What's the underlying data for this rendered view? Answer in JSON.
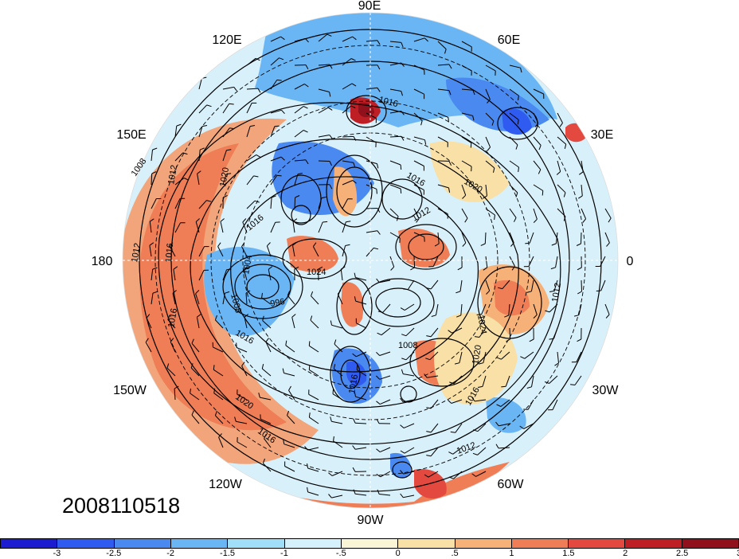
{
  "map": {
    "projection": "north-polar-stereographic",
    "timestamp": "2008110518",
    "lon_labels": {
      "n": "90E",
      "ne1": "60E",
      "ne2": "30E",
      "e": "0",
      "se2": "30W",
      "se1": "60W",
      "s": "90W",
      "sw1": "120W",
      "sw2": "150W",
      "w": "180",
      "nw2": "150E",
      "nw1": "120E"
    },
    "isobar_labels": [
      "1008",
      "1012",
      "1016",
      "1020",
      "1024",
      "996",
      "1004"
    ],
    "anomaly_blobs": [
      {
        "level": 3,
        "region": "arctic-siberia"
      },
      {
        "level": -2.5,
        "region": "scandinavia"
      },
      {
        "level": 2.5,
        "region": "north-africa"
      },
      {
        "level": 1.5,
        "region": "north-pacific-ring"
      },
      {
        "level": -1.5,
        "region": "hudson-bay"
      },
      {
        "level": 2,
        "region": "atlantic"
      }
    ]
  },
  "colorbar": {
    "colors": [
      "#1c1cd0",
      "#2f5bf0",
      "#4a8af0",
      "#6ab6f5",
      "#a0dff7",
      "#d5f1fb",
      "#fbf5d8",
      "#f8e0a6",
      "#f5b178",
      "#ef7d55",
      "#e3493f",
      "#bd1f25",
      "#90101c"
    ],
    "ticks": [
      "-3",
      "-2.5",
      "-2",
      "-1.5",
      "-1",
      "-.5",
      "0",
      ".5",
      "1",
      "1.5",
      "2",
      "2.5",
      "3"
    ]
  }
}
